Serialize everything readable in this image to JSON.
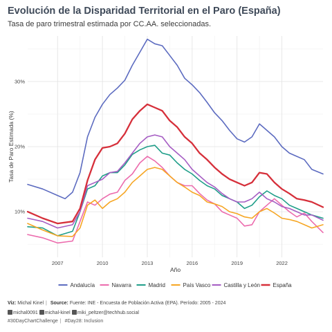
{
  "header": {
    "title": "Evolución de la Disparidad Territorial en el Paro (España)",
    "subtitle": "Tasa de paro trimestral estimada por CC.AA. seleccionadas."
  },
  "caption": {
    "viz_label": "Viz:",
    "viz_author": "Michal Kinel",
    "source_label": "Source:",
    "source_text": "Fuente: INE - Encuesta de Población Activa (EPA). Período: 2005 - 2024",
    "github": "michal0091",
    "twitter": "michal-kinel",
    "mastodon": "miki_peltzer@techhub.social",
    "hashtag1": "#30DayChartChallenge",
    "hashtag2": "#Day28: Inclusion"
  },
  "chart_data": {
    "type": "line",
    "title": "Evolución de la Disparidad Territorial en el Paro (España)",
    "subtitle": "Tasa de paro trimestral estimada por CC.AA. seleccionadas.",
    "xlabel": "Año",
    "ylabel": "Tasa de Paro Estimada (%)",
    "x_range": [
      2005.0,
      2024.75
    ],
    "ylim": [
      0.03,
      0.37
    ],
    "x_ticks": [
      2007,
      2010,
      2013,
      2016,
      2019,
      2022
    ],
    "x_tick_labels": [
      "2007",
      "2010",
      "2013",
      "2016",
      "2019",
      "2022"
    ],
    "y_ticks": [
      0.1,
      0.2,
      0.3
    ],
    "y_tick_labels": [
      "10%",
      "20%",
      "30%"
    ],
    "grid": true,
    "legend_position": "bottom",
    "series": [
      {
        "name": "Andalucía",
        "color": "#5c6bc0",
        "values": [
          [
            2005.0,
            0.142
          ],
          [
            2006.0,
            0.135
          ],
          [
            2007.0,
            0.125
          ],
          [
            2007.5,
            0.12
          ],
          [
            2008.0,
            0.13
          ],
          [
            2008.5,
            0.16
          ],
          [
            2009.0,
            0.215
          ],
          [
            2009.5,
            0.245
          ],
          [
            2010.0,
            0.265
          ],
          [
            2010.5,
            0.28
          ],
          [
            2011.0,
            0.29
          ],
          [
            2011.5,
            0.302
          ],
          [
            2012.0,
            0.325
          ],
          [
            2012.5,
            0.345
          ],
          [
            2013.0,
            0.365
          ],
          [
            2013.5,
            0.358
          ],
          [
            2014.0,
            0.355
          ],
          [
            2014.5,
            0.34
          ],
          [
            2015.0,
            0.325
          ],
          [
            2015.5,
            0.305
          ],
          [
            2016.0,
            0.295
          ],
          [
            2016.5,
            0.283
          ],
          [
            2017.0,
            0.268
          ],
          [
            2017.5,
            0.252
          ],
          [
            2018.0,
            0.24
          ],
          [
            2018.5,
            0.225
          ],
          [
            2019.0,
            0.212
          ],
          [
            2019.5,
            0.207
          ],
          [
            2020.0,
            0.215
          ],
          [
            2020.5,
            0.235
          ],
          [
            2021.0,
            0.225
          ],
          [
            2021.5,
            0.215
          ],
          [
            2022.0,
            0.2
          ],
          [
            2022.5,
            0.19
          ],
          [
            2023.0,
            0.185
          ],
          [
            2023.5,
            0.18
          ],
          [
            2024.0,
            0.165
          ],
          [
            2024.75,
            0.158
          ]
        ]
      },
      {
        "name": "Navarra",
        "color": "#ec6bad",
        "values": [
          [
            2005.0,
            0.065
          ],
          [
            2006.0,
            0.06
          ],
          [
            2007.0,
            0.052
          ],
          [
            2008.0,
            0.055
          ],
          [
            2008.5,
            0.085
          ],
          [
            2009.0,
            0.115
          ],
          [
            2009.5,
            0.11
          ],
          [
            2010.0,
            0.12
          ],
          [
            2010.5,
            0.127
          ],
          [
            2011.0,
            0.13
          ],
          [
            2011.5,
            0.148
          ],
          [
            2012.0,
            0.158
          ],
          [
            2012.5,
            0.175
          ],
          [
            2013.0,
            0.185
          ],
          [
            2013.5,
            0.178
          ],
          [
            2014.0,
            0.168
          ],
          [
            2014.5,
            0.155
          ],
          [
            2015.0,
            0.145
          ],
          [
            2015.5,
            0.14
          ],
          [
            2016.0,
            0.14
          ],
          [
            2016.5,
            0.128
          ],
          [
            2017.0,
            0.118
          ],
          [
            2017.5,
            0.112
          ],
          [
            2018.0,
            0.1
          ],
          [
            2018.5,
            0.095
          ],
          [
            2019.0,
            0.09
          ],
          [
            2019.5,
            0.078
          ],
          [
            2020.0,
            0.08
          ],
          [
            2020.5,
            0.1
          ],
          [
            2021.0,
            0.11
          ],
          [
            2021.5,
            0.12
          ],
          [
            2022.0,
            0.11
          ],
          [
            2022.5,
            0.1
          ],
          [
            2023.0,
            0.092
          ],
          [
            2023.5,
            0.098
          ],
          [
            2024.0,
            0.085
          ],
          [
            2024.75,
            0.068
          ]
        ]
      },
      {
        "name": "Madrid",
        "color": "#1f9e89",
        "values": [
          [
            2005.0,
            0.077
          ],
          [
            2006.0,
            0.075
          ],
          [
            2007.0,
            0.063
          ],
          [
            2008.0,
            0.07
          ],
          [
            2008.5,
            0.1
          ],
          [
            2009.0,
            0.135
          ],
          [
            2009.5,
            0.14
          ],
          [
            2010.0,
            0.155
          ],
          [
            2010.5,
            0.16
          ],
          [
            2011.0,
            0.16
          ],
          [
            2011.5,
            0.172
          ],
          [
            2012.0,
            0.188
          ],
          [
            2012.5,
            0.195
          ],
          [
            2013.0,
            0.2
          ],
          [
            2013.5,
            0.202
          ],
          [
            2014.0,
            0.19
          ],
          [
            2014.5,
            0.187
          ],
          [
            2015.0,
            0.175
          ],
          [
            2015.5,
            0.165
          ],
          [
            2016.0,
            0.158
          ],
          [
            2016.5,
            0.148
          ],
          [
            2017.0,
            0.14
          ],
          [
            2017.5,
            0.135
          ],
          [
            2018.0,
            0.125
          ],
          [
            2018.5,
            0.12
          ],
          [
            2019.0,
            0.115
          ],
          [
            2019.5,
            0.105
          ],
          [
            2020.0,
            0.11
          ],
          [
            2020.5,
            0.123
          ],
          [
            2021.0,
            0.132
          ],
          [
            2021.5,
            0.125
          ],
          [
            2022.0,
            0.12
          ],
          [
            2022.5,
            0.11
          ],
          [
            2023.0,
            0.105
          ],
          [
            2023.5,
            0.1
          ],
          [
            2024.0,
            0.095
          ],
          [
            2024.75,
            0.09
          ]
        ]
      },
      {
        "name": "País Vasco",
        "color": "#f6a623",
        "values": [
          [
            2005.0,
            0.082
          ],
          [
            2006.0,
            0.072
          ],
          [
            2007.0,
            0.063
          ],
          [
            2008.0,
            0.062
          ],
          [
            2008.5,
            0.075
          ],
          [
            2009.0,
            0.11
          ],
          [
            2009.5,
            0.118
          ],
          [
            2010.0,
            0.105
          ],
          [
            2010.5,
            0.115
          ],
          [
            2011.0,
            0.12
          ],
          [
            2011.5,
            0.13
          ],
          [
            2012.0,
            0.145
          ],
          [
            2012.5,
            0.155
          ],
          [
            2013.0,
            0.165
          ],
          [
            2013.5,
            0.168
          ],
          [
            2014.0,
            0.165
          ],
          [
            2014.5,
            0.155
          ],
          [
            2015.0,
            0.145
          ],
          [
            2015.5,
            0.138
          ],
          [
            2016.0,
            0.13
          ],
          [
            2016.5,
            0.125
          ],
          [
            2017.0,
            0.115
          ],
          [
            2017.5,
            0.112
          ],
          [
            2018.0,
            0.108
          ],
          [
            2018.5,
            0.1
          ],
          [
            2019.0,
            0.097
          ],
          [
            2019.5,
            0.092
          ],
          [
            2020.0,
            0.09
          ],
          [
            2020.5,
            0.1
          ],
          [
            2021.0,
            0.105
          ],
          [
            2021.5,
            0.098
          ],
          [
            2022.0,
            0.09
          ],
          [
            2022.5,
            0.088
          ],
          [
            2023.0,
            0.085
          ],
          [
            2023.5,
            0.08
          ],
          [
            2024.0,
            0.075
          ],
          [
            2024.75,
            0.08
          ]
        ]
      },
      {
        "name": "Castilla y León",
        "color": "#a55cc3",
        "values": [
          [
            2005.0,
            0.09
          ],
          [
            2006.0,
            0.085
          ],
          [
            2007.0,
            0.075
          ],
          [
            2008.0,
            0.08
          ],
          [
            2008.5,
            0.1
          ],
          [
            2009.0,
            0.14
          ],
          [
            2009.5,
            0.145
          ],
          [
            2010.0,
            0.15
          ],
          [
            2010.5,
            0.16
          ],
          [
            2011.0,
            0.162
          ],
          [
            2011.5,
            0.175
          ],
          [
            2012.0,
            0.19
          ],
          [
            2012.5,
            0.205
          ],
          [
            2013.0,
            0.215
          ],
          [
            2013.5,
            0.218
          ],
          [
            2014.0,
            0.215
          ],
          [
            2014.5,
            0.2
          ],
          [
            2015.0,
            0.19
          ],
          [
            2015.5,
            0.18
          ],
          [
            2016.0,
            0.165
          ],
          [
            2016.5,
            0.155
          ],
          [
            2017.0,
            0.145
          ],
          [
            2017.5,
            0.138
          ],
          [
            2018.0,
            0.128
          ],
          [
            2018.5,
            0.12
          ],
          [
            2019.0,
            0.115
          ],
          [
            2019.5,
            0.115
          ],
          [
            2020.0,
            0.12
          ],
          [
            2020.5,
            0.13
          ],
          [
            2021.0,
            0.12
          ],
          [
            2021.5,
            0.115
          ],
          [
            2022.0,
            0.108
          ],
          [
            2022.5,
            0.105
          ],
          [
            2023.0,
            0.1
          ],
          [
            2023.5,
            0.095
          ],
          [
            2024.0,
            0.095
          ],
          [
            2024.75,
            0.087
          ]
        ]
      },
      {
        "name": "España",
        "color": "#d62f3a",
        "values": [
          [
            2005.0,
            0.1
          ],
          [
            2006.0,
            0.09
          ],
          [
            2007.0,
            0.082
          ],
          [
            2008.0,
            0.085
          ],
          [
            2008.5,
            0.105
          ],
          [
            2009.0,
            0.148
          ],
          [
            2009.5,
            0.18
          ],
          [
            2010.0,
            0.198
          ],
          [
            2010.5,
            0.2
          ],
          [
            2011.0,
            0.205
          ],
          [
            2011.5,
            0.22
          ],
          [
            2012.0,
            0.242
          ],
          [
            2012.5,
            0.255
          ],
          [
            2013.0,
            0.265
          ],
          [
            2013.5,
            0.26
          ],
          [
            2014.0,
            0.255
          ],
          [
            2014.5,
            0.24
          ],
          [
            2015.0,
            0.23
          ],
          [
            2015.5,
            0.215
          ],
          [
            2016.0,
            0.205
          ],
          [
            2016.5,
            0.19
          ],
          [
            2017.0,
            0.18
          ],
          [
            2017.5,
            0.168
          ],
          [
            2018.0,
            0.158
          ],
          [
            2018.5,
            0.15
          ],
          [
            2019.0,
            0.145
          ],
          [
            2019.5,
            0.14
          ],
          [
            2020.0,
            0.145
          ],
          [
            2020.5,
            0.16
          ],
          [
            2021.0,
            0.158
          ],
          [
            2021.5,
            0.145
          ],
          [
            2022.0,
            0.135
          ],
          [
            2022.5,
            0.128
          ],
          [
            2023.0,
            0.12
          ],
          [
            2023.5,
            0.118
          ],
          [
            2024.0,
            0.115
          ],
          [
            2024.75,
            0.107
          ]
        ]
      }
    ]
  }
}
